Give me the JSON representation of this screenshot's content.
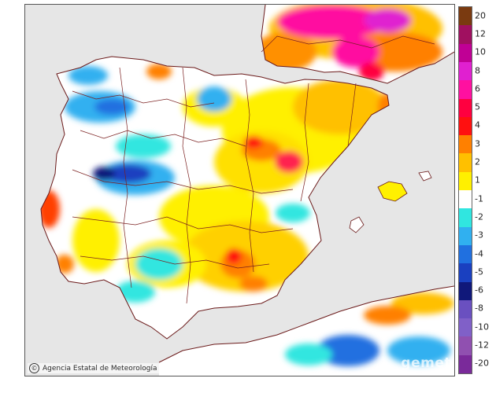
{
  "map": {
    "colors": {
      "sea": "#e6e6e6",
      "land_white": "#ffffff",
      "neutral_zone": "#ffffff",
      "border": "#7a1f1f",
      "coast": "#6b1a1a"
    }
  },
  "credit": {
    "text": "Agencia Estatal de Meteorología",
    "logo": "©"
  },
  "watermark": {
    "text": "gemet"
  },
  "legend": {
    "entries": [
      {
        "label": "20",
        "color": "#7a3a10"
      },
      {
        "label": "12",
        "color": "#a01060"
      },
      {
        "label": "10",
        "color": "#c00095"
      },
      {
        "label": "8",
        "color": "#e020d0"
      },
      {
        "label": "6",
        "color": "#ff10a0"
      },
      {
        "label": "5",
        "color": "#ff0040"
      },
      {
        "label": "4",
        "color": "#ff1010"
      },
      {
        "label": "3",
        "color": "#ff8000"
      },
      {
        "label": "2",
        "color": "#ffc000"
      },
      {
        "label": "1",
        "color": "#fff000"
      },
      {
        "label": "-1",
        "color": "#ffffff"
      },
      {
        "label": "-2",
        "color": "#30e6e0"
      },
      {
        "label": "-3",
        "color": "#30b0f0"
      },
      {
        "label": "-4",
        "color": "#2070e0"
      },
      {
        "label": "-5",
        "color": "#1a40c0"
      },
      {
        "label": "-6",
        "color": "#10187a"
      },
      {
        "label": "-8",
        "color": "#6a50c0"
      },
      {
        "label": "-10",
        "color": "#8060c8"
      },
      {
        "label": "-12",
        "color": "#9050b0"
      },
      {
        "label": "-20",
        "color": "#7a2a9a"
      }
    ]
  }
}
